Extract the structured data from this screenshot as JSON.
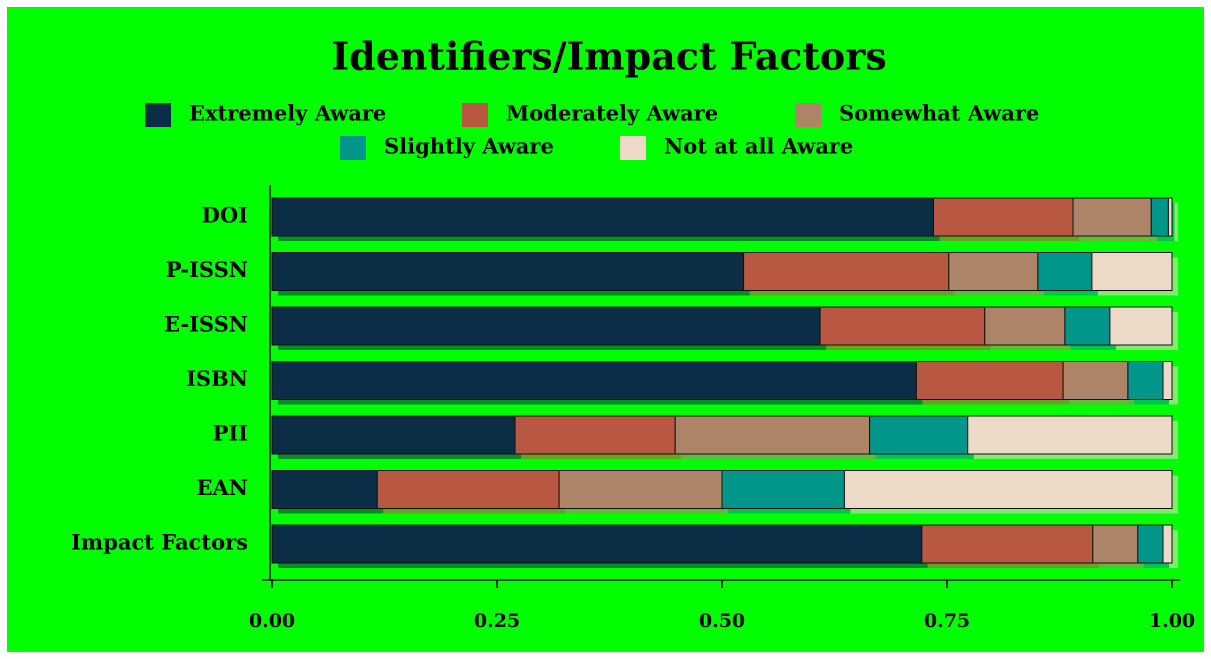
{
  "chart_data": {
    "type": "stacked-barh",
    "title": "Identifiers/Impact Factors",
    "categories": [
      "DOI",
      "P-ISSN",
      "E-ISSN",
      "ISBN",
      "PII",
      "EAN",
      "Impact Factors"
    ],
    "series": [
      {
        "name": "Extremely Aware",
        "color": "#0b2d45",
        "values": [
          0.735,
          0.524,
          0.609,
          0.716,
          0.27,
          0.117,
          0.722
        ]
      },
      {
        "name": "Moderately Aware",
        "color": "#b85842",
        "values": [
          0.155,
          0.228,
          0.183,
          0.163,
          0.178,
          0.202,
          0.19
        ]
      },
      {
        "name": "Somewhat Aware",
        "color": "#ad8467",
        "values": [
          0.087,
          0.099,
          0.089,
          0.072,
          0.216,
          0.181,
          0.05
        ]
      },
      {
        "name": "Slightly Aware",
        "color": "#00968a",
        "values": [
          0.019,
          0.06,
          0.05,
          0.039,
          0.109,
          0.136,
          0.028
        ]
      },
      {
        "name": "Not at all Aware",
        "color": "#ecd9c8",
        "values": [
          0.004,
          0.089,
          0.069,
          0.01,
          0.227,
          0.364,
          0.01
        ]
      }
    ],
    "xlim": [
      0,
      1
    ],
    "xticks": [
      {
        "value": 0,
        "label": "0.00"
      },
      {
        "value": 0.25,
        "label": "0.25"
      },
      {
        "value": 0.5,
        "label": "0.50"
      },
      {
        "value": 0.75,
        "label": "0.75"
      },
      {
        "value": 1,
        "label": "1.00"
      }
    ]
  }
}
